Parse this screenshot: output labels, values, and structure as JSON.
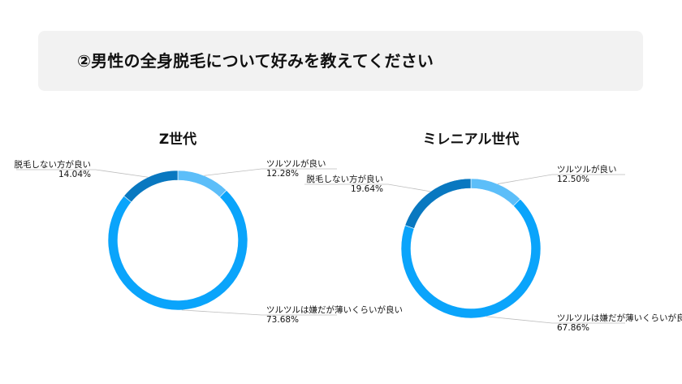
{
  "header": {
    "title": "②男性の全身脱毛について好みを教えてください"
  },
  "chart_data": [
    {
      "type": "pie",
      "title": "Z世代",
      "categories": [
        "ツルツルが良い",
        "ツルツルは嫌だが薄いくらいが良い",
        "脱毛しない方が良い"
      ],
      "values": [
        12.28,
        73.68,
        14.04
      ],
      "value_labels": [
        "12.28%",
        "73.68%",
        "14.04%"
      ],
      "colors": [
        "#5cbef9",
        "#0aa4fb",
        "#0978c0"
      ],
      "donut": true
    },
    {
      "type": "pie",
      "title": "ミレニアル世代",
      "categories": [
        "ツルツルが良い",
        "ツルツルは嫌だが薄いくらいが良い",
        "脱毛しない方が良い"
      ],
      "values": [
        12.5,
        67.86,
        19.64
      ],
      "value_labels": [
        "12.50%",
        "67.86%",
        "19.64%"
      ],
      "colors": [
        "#5cbef9",
        "#0aa4fb",
        "#0978c0"
      ],
      "donut": true
    }
  ]
}
